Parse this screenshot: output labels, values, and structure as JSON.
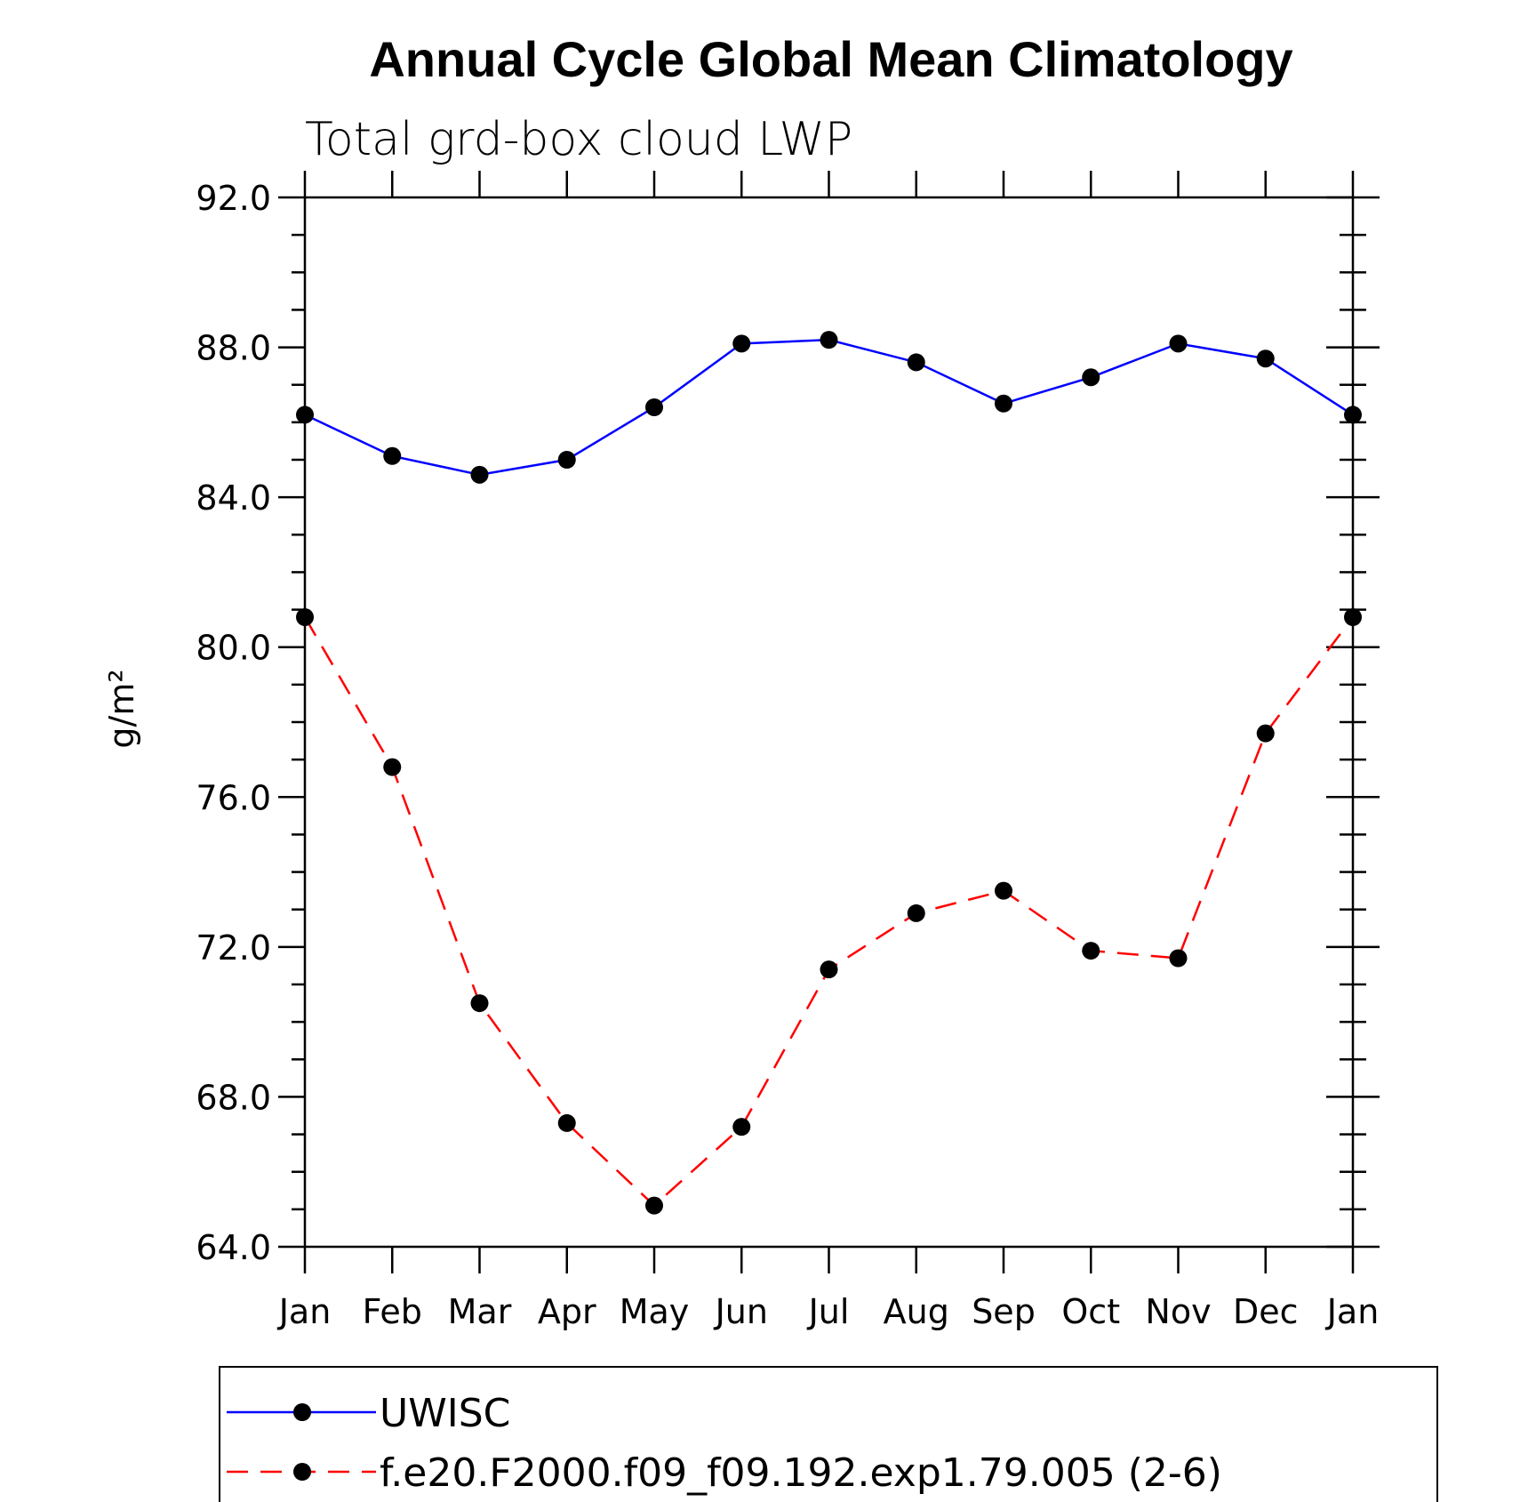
{
  "chart_data": {
    "type": "line",
    "title": "Annual Cycle Global Mean Climatology",
    "subtitle": "Total grd-box cloud LWP",
    "ylabel": "g/m²",
    "xlabel": "",
    "categories": [
      "Jan",
      "Feb",
      "Mar",
      "Apr",
      "May",
      "Jun",
      "Jul",
      "Aug",
      "Sep",
      "Oct",
      "Nov",
      "Dec",
      "Jan"
    ],
    "ylim": [
      64.0,
      92.0
    ],
    "yticks": [
      "64.0",
      "68.0",
      "72.0",
      "76.0",
      "80.0",
      "84.0",
      "88.0",
      "92.0"
    ],
    "grid": false,
    "legend": "bottom",
    "series": [
      {
        "name": "UWISC",
        "color": "#0000ff",
        "dash": "solid",
        "values": [
          86.2,
          85.1,
          84.6,
          85.0,
          86.4,
          88.1,
          88.2,
          87.6,
          86.5,
          87.2,
          88.1,
          87.7,
          86.2
        ]
      },
      {
        "name": "f.e20.F2000.f09_f09.192.exp1.79.005 (2-6)",
        "color": "#ff0000",
        "dash": "dashed",
        "values": [
          80.8,
          76.8,
          70.5,
          67.3,
          65.1,
          67.2,
          71.4,
          72.9,
          73.5,
          71.9,
          71.7,
          77.7,
          80.8
        ]
      }
    ]
  }
}
